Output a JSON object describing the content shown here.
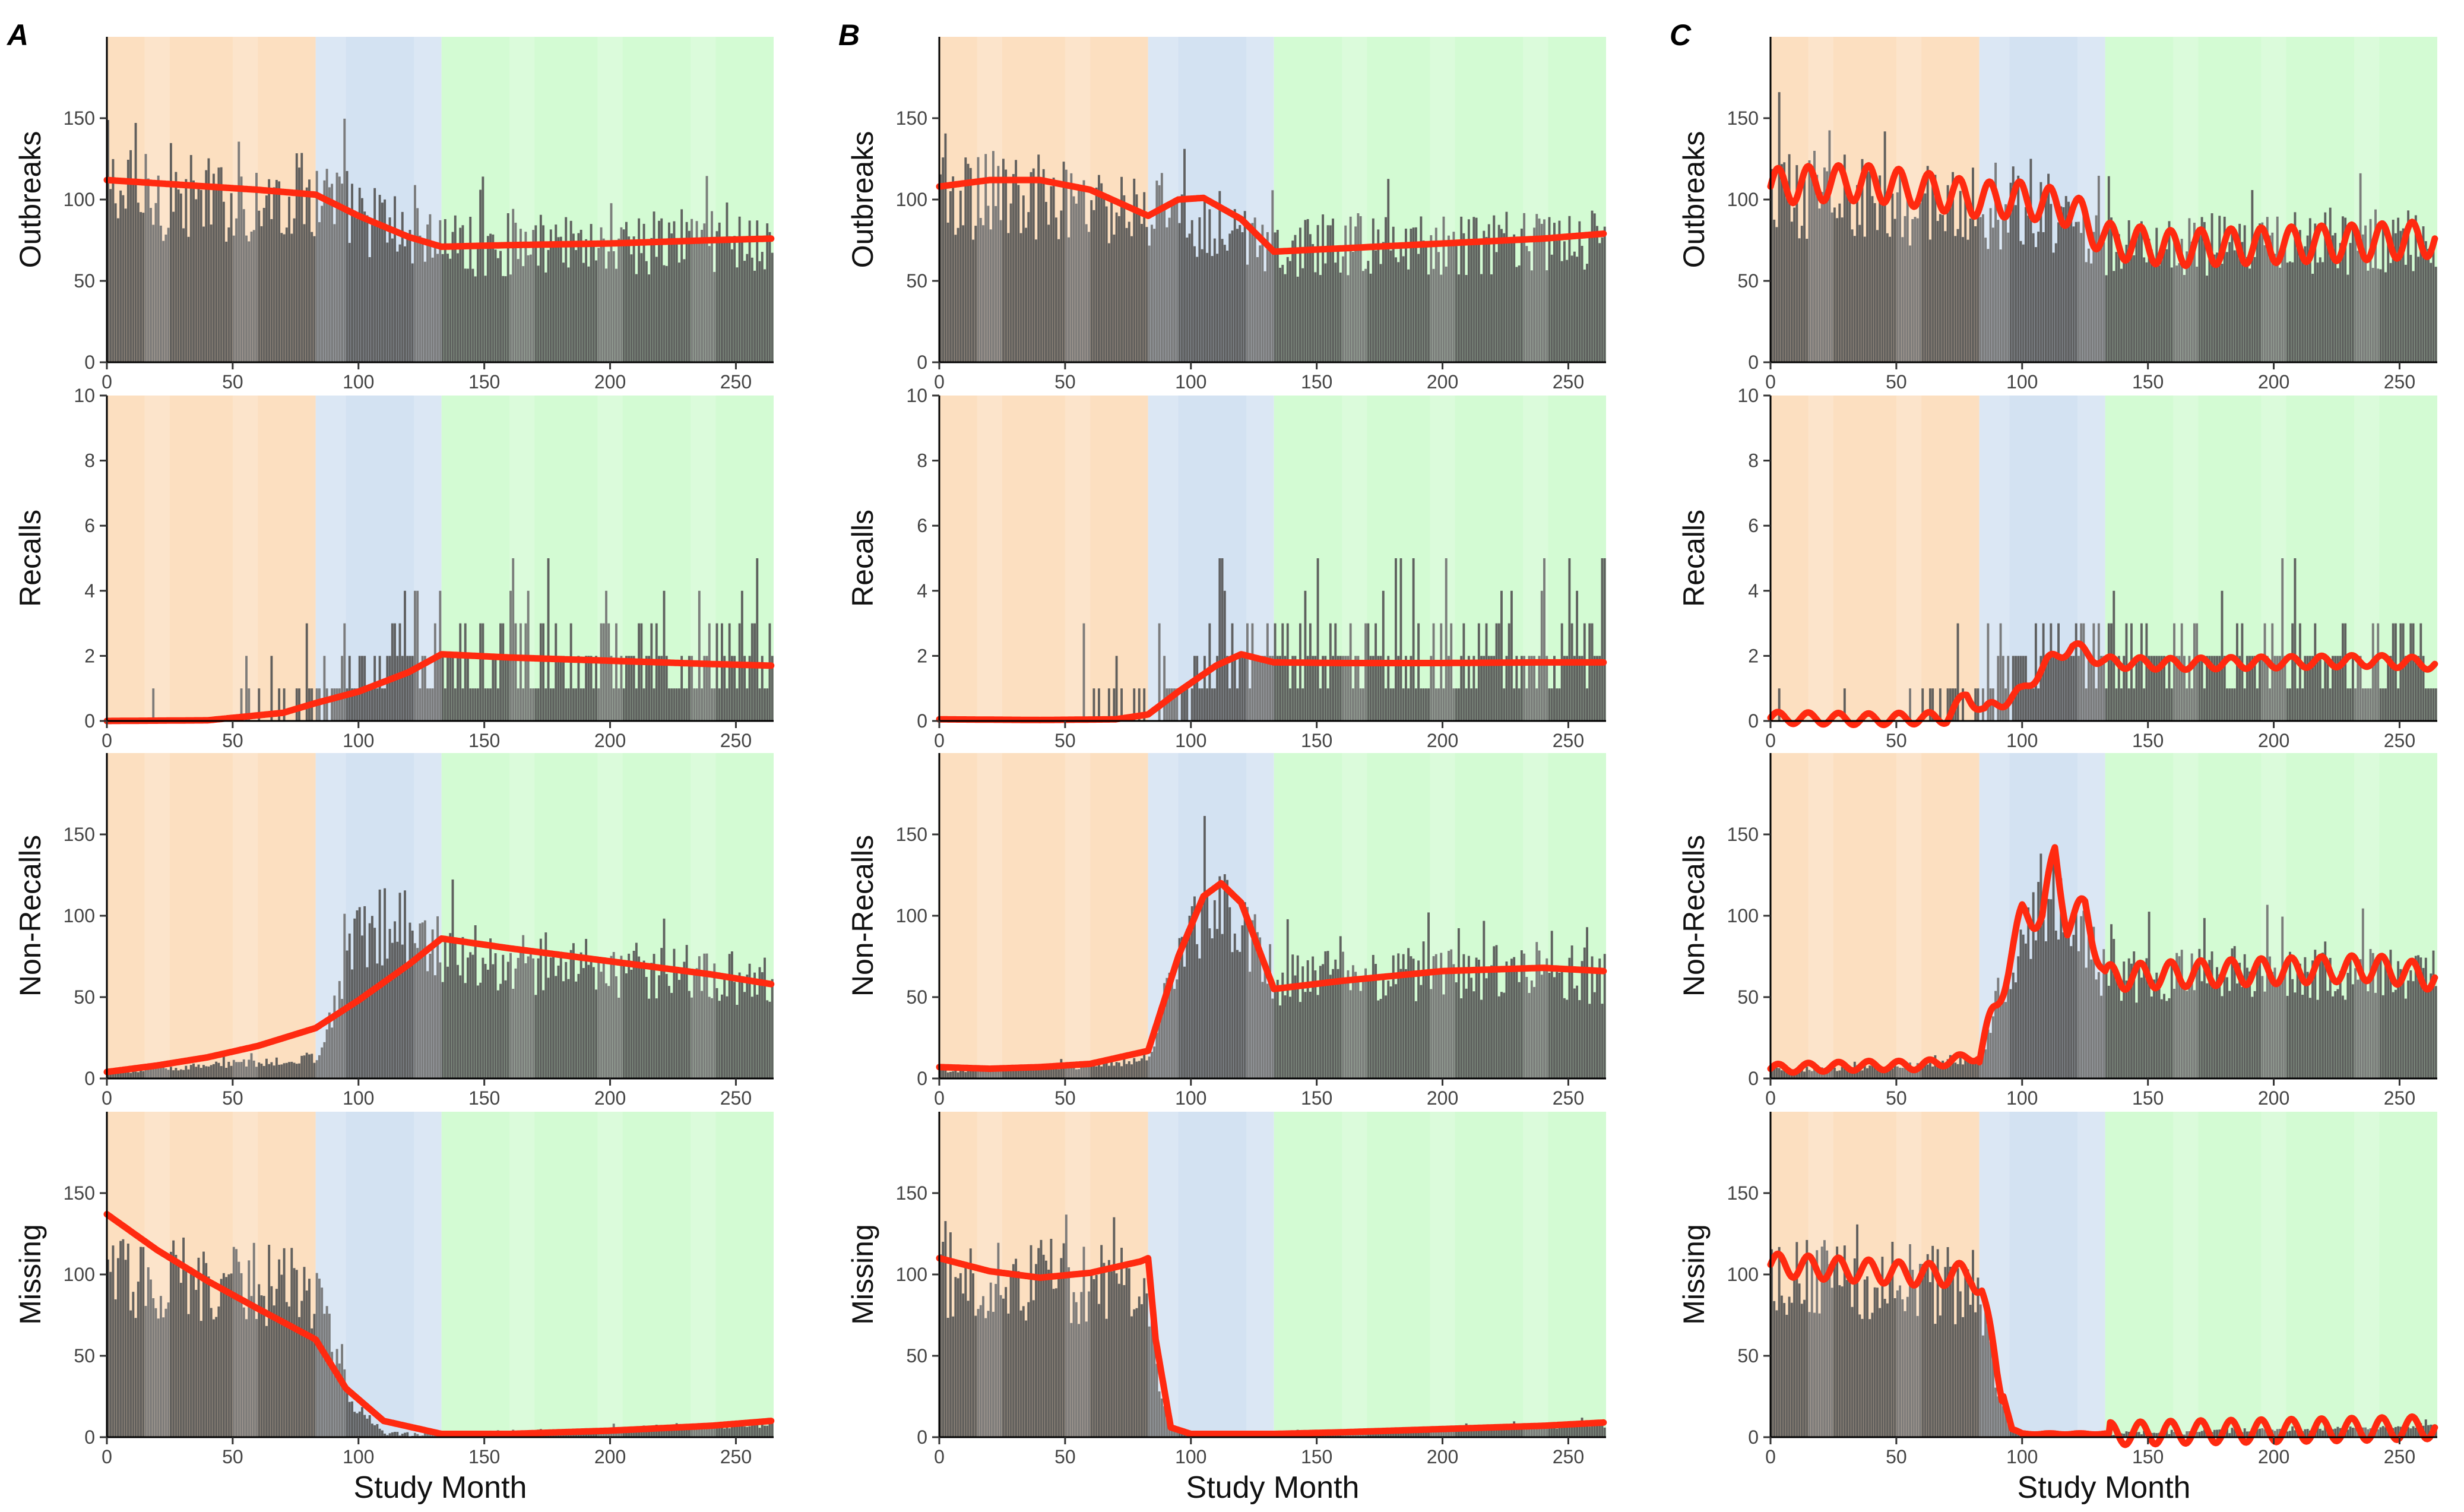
{
  "figure": {
    "panel_labels": [
      "A",
      "B",
      "C"
    ],
    "xlabel": "Study Month",
    "x_ticks": [
      0,
      50,
      100,
      150,
      200,
      250
    ],
    "xlim": [
      0,
      265
    ],
    "phase_boundaries": [
      83,
      133
    ],
    "phase_colors": [
      "#fcdfc0",
      "#d3e2f2",
      "#d3fbd3"
    ],
    "bar_color": "#555555",
    "line_color": "#ff2a10"
  },
  "rows": [
    {
      "key": "outbreaks",
      "ylabel": "Outbreaks",
      "y_ticks": [
        0,
        50,
        100,
        150
      ],
      "ylim": [
        0,
        200
      ]
    },
    {
      "key": "recalls",
      "ylabel": "Recalls",
      "y_ticks": [
        0,
        2,
        4,
        6,
        8,
        10
      ],
      "ylim": [
        0,
        10
      ]
    },
    {
      "key": "nonrecalls",
      "ylabel": "Non-Recalls",
      "y_ticks": [
        0,
        50,
        100,
        150
      ],
      "ylim": [
        0,
        200
      ]
    },
    {
      "key": "missing",
      "ylabel": "Missing",
      "y_ticks": [
        0,
        50,
        100,
        150
      ],
      "ylim": [
        0,
        200
      ]
    }
  ],
  "chart_data": [
    {
      "type": "bar",
      "panel": "A",
      "title": "",
      "xlabel": "Study Month",
      "ylabel": "Outbreaks",
      "x": [
        0,
        20,
        40,
        60,
        83,
        100,
        120,
        133,
        160,
        200,
        240,
        264
      ],
      "bar_means": [
        105,
        102,
        100,
        98,
        105,
        90,
        80,
        72,
        72,
        73,
        74,
        74
      ],
      "fit_values": [
        112,
        110,
        108,
        106,
        103,
        90,
        77,
        71,
        72,
        73,
        75,
        76
      ],
      "ylim": [
        0,
        200
      ]
    },
    {
      "type": "bar",
      "panel": "A",
      "xlabel": "Study Month",
      "ylabel": "Recalls",
      "x": [
        0,
        40,
        70,
        83,
        100,
        120,
        133,
        160,
        200,
        240,
        264
      ],
      "bar_means": [
        0,
        0,
        0.1,
        0.4,
        1.5,
        1.8,
        2.0,
        1.9,
        1.8,
        1.8,
        1.7
      ],
      "fit_values": [
        0,
        0.02,
        0.25,
        0.55,
        0.9,
        1.5,
        2.05,
        1.95,
        1.85,
        1.75,
        1.7
      ],
      "ylim": [
        0,
        10
      ]
    },
    {
      "type": "bar",
      "panel": "A",
      "xlabel": "Study Month",
      "ylabel": "Non-Recalls",
      "x": [
        0,
        20,
        40,
        60,
        83,
        100,
        120,
        133,
        160,
        200,
        240,
        264
      ],
      "bar_means": [
        4,
        6,
        8,
        10,
        12,
        90,
        95,
        80,
        70,
        68,
        64,
        60
      ],
      "fit_values": [
        4,
        8,
        13,
        20,
        31,
        48,
        70,
        86,
        80,
        72,
        64,
        58
      ],
      "ylim": [
        0,
        200
      ]
    },
    {
      "type": "bar",
      "panel": "A",
      "xlabel": "Study Month",
      "ylabel": "Missing",
      "x": [
        0,
        20,
        40,
        60,
        83,
        95,
        110,
        133,
        160,
        200,
        240,
        264
      ],
      "bar_means": [
        100,
        98,
        96,
        94,
        90,
        25,
        2,
        2,
        3,
        5,
        7,
        8
      ],
      "fit_values": [
        137,
        115,
        96,
        79,
        60,
        30,
        10,
        2,
        2,
        4,
        7,
        10
      ],
      "ylim": [
        0,
        200
      ]
    },
    {
      "type": "bar",
      "panel": "B",
      "xlabel": "Study Month",
      "ylabel": "Outbreaks",
      "x": [
        0,
        20,
        40,
        60,
        83,
        95,
        105,
        120,
        133,
        160,
        200,
        240,
        264
      ],
      "bar_means": [
        105,
        102,
        100,
        98,
        95,
        90,
        85,
        80,
        72,
        72,
        73,
        74,
        74
      ],
      "fit_values": [
        108,
        112,
        112,
        106,
        90,
        100,
        101,
        88,
        68,
        70,
        73,
        76,
        79
      ],
      "ylim": [
        0,
        200
      ]
    },
    {
      "type": "bar",
      "panel": "B",
      "xlabel": "Study Month",
      "ylabel": "Recalls",
      "x": [
        0,
        40,
        70,
        83,
        95,
        110,
        120,
        133,
        160,
        200,
        240,
        264
      ],
      "bar_means": [
        0,
        0,
        0.1,
        0.2,
        1.0,
        1.8,
        2.0,
        1.9,
        1.8,
        1.8,
        1.8,
        1.8
      ],
      "fit_values": [
        0.05,
        0.03,
        0.05,
        0.2,
        0.9,
        1.7,
        2.05,
        1.8,
        1.78,
        1.78,
        1.8,
        1.8
      ],
      "ylim": [
        0,
        10
      ]
    },
    {
      "type": "bar",
      "panel": "B",
      "xlabel": "Study Month",
      "ylabel": "Non-Recalls",
      "x": [
        0,
        20,
        40,
        60,
        83,
        95,
        105,
        112,
        120,
        133,
        160,
        200,
        240,
        264
      ],
      "bar_means": [
        5,
        6,
        7,
        8,
        12,
        80,
        100,
        105,
        95,
        60,
        62,
        65,
        66,
        62
      ],
      "fit_values": [
        7,
        6,
        7,
        9,
        17,
        75,
        112,
        120,
        108,
        55,
        60,
        66,
        68,
        66
      ],
      "ylim": [
        0,
        200
      ]
    },
    {
      "type": "bar",
      "panel": "B",
      "xlabel": "Study Month",
      "ylabel": "Missing",
      "x": [
        0,
        20,
        40,
        60,
        80,
        83,
        86,
        92,
        100,
        133,
        160,
        200,
        240,
        264
      ],
      "bar_means": [
        100,
        98,
        96,
        94,
        92,
        90,
        40,
        5,
        2,
        2,
        3,
        5,
        7,
        8
      ],
      "fit_values": [
        110,
        102,
        98,
        101,
        108,
        110,
        60,
        6,
        2,
        2,
        3,
        5,
        7,
        9
      ],
      "ylim": [
        0,
        200
      ]
    },
    {
      "type": "bar",
      "panel": "C",
      "xlabel": "Study Month",
      "ylabel": "Outbreaks",
      "x": [
        0,
        20,
        40,
        60,
        83,
        100,
        120,
        133,
        160,
        200,
        240,
        264
      ],
      "bar_means": [
        105,
        102,
        100,
        98,
        95,
        90,
        85,
        72,
        72,
        73,
        74,
        74
      ],
      "fit_values": [
        108,
        110,
        110,
        106,
        100,
        100,
        94,
        75,
        70,
        72,
        74,
        76
      ],
      "seasonal_amplitude": 11,
      "ylim": [
        0,
        200
      ]
    },
    {
      "type": "bar",
      "panel": "C",
      "xlabel": "Study Month",
      "ylabel": "Recalls",
      "x": [
        0,
        40,
        70,
        78,
        85,
        100,
        110,
        120,
        133,
        160,
        200,
        240,
        264
      ],
      "bar_means": [
        0,
        0,
        0.1,
        0.3,
        0.3,
        1.5,
        2.0,
        2.0,
        1.9,
        1.8,
        1.8,
        1.8,
        1.8
      ],
      "fit_values": [
        0.1,
        0.05,
        0.1,
        0.8,
        0.3,
        0.9,
        1.8,
        2.3,
        1.8,
        1.75,
        1.8,
        1.85,
        1.75
      ],
      "seasonal_amplitude": 0.18,
      "ylim": [
        0,
        10
      ]
    },
    {
      "type": "bar",
      "panel": "C",
      "xlabel": "Study Month",
      "ylabel": "Non-Recalls",
      "x": [
        0,
        20,
        40,
        60,
        83,
        90,
        100,
        108,
        113,
        118,
        125,
        133,
        160,
        200,
        240,
        264
      ],
      "bar_means": [
        5,
        6,
        7,
        8,
        12,
        50,
        90,
        100,
        110,
        95,
        80,
        62,
        64,
        66,
        67,
        63
      ],
      "fit_values": [
        6,
        7,
        8,
        8,
        14,
        45,
        100,
        100,
        138,
        95,
        105,
        62,
        64,
        66,
        68,
        62
      ],
      "seasonal_amplitude": 8,
      "ylim": [
        0,
        200
      ]
    },
    {
      "type": "bar",
      "panel": "C",
      "xlabel": "Study Month",
      "ylabel": "Missing",
      "x": [
        0,
        20,
        40,
        60,
        80,
        84,
        90,
        96,
        100,
        133,
        160,
        200,
        240,
        264
      ],
      "bar_means": [
        100,
        98,
        96,
        94,
        92,
        85,
        30,
        4,
        2,
        2,
        3,
        5,
        6,
        7
      ],
      "fit_values": [
        106,
        104,
        102,
        100,
        100,
        90,
        40,
        5,
        2,
        2,
        3,
        4,
        5,
        6
      ],
      "seasonal_amplitude": 7,
      "ylim": [
        0,
        200
      ]
    }
  ]
}
